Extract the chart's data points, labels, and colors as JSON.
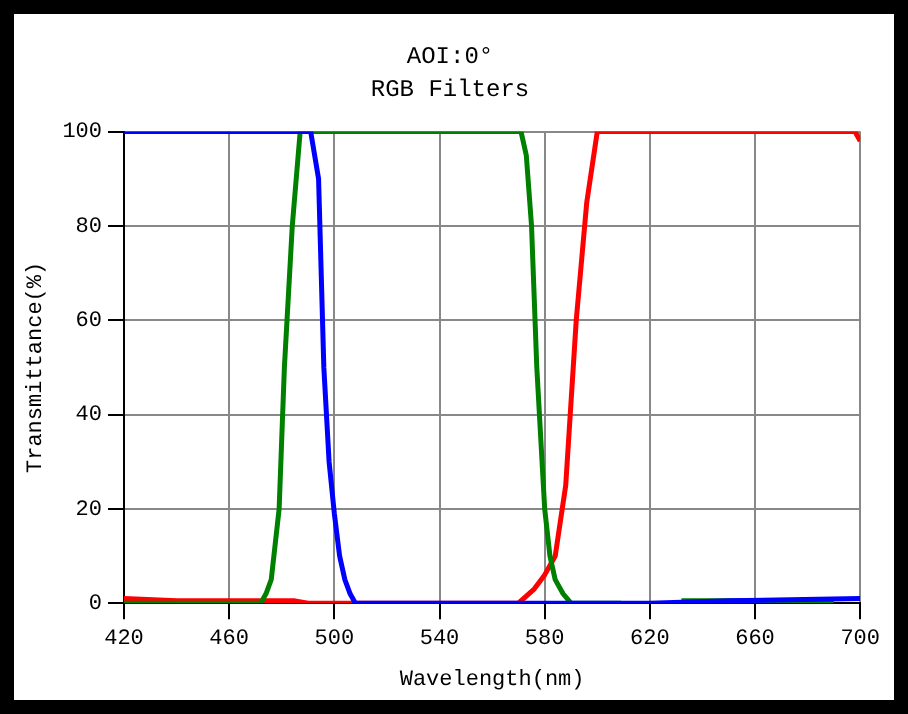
{
  "chart_data": {
    "type": "line",
    "title": "AOI:0°",
    "subtitle": "RGB Filters",
    "xlabel": "Wavelength(nm)",
    "ylabel": "Transmittance(%)",
    "xlim": [
      420,
      700
    ],
    "ylim": [
      0,
      100
    ],
    "xticks": [
      420,
      460,
      500,
      540,
      580,
      620,
      660,
      700
    ],
    "yticks": [
      0,
      20,
      40,
      60,
      80,
      100
    ],
    "grid": true,
    "legend": false,
    "marker": "none",
    "line_style": "solid",
    "series": [
      {
        "color": "#0000ff",
        "x": [
          420,
          491,
          494,
          496,
          498,
          500,
          502,
          504,
          506,
          508,
          560,
          620,
          650,
          700
        ],
        "values": [
          100,
          100,
          90,
          50,
          30,
          19,
          10,
          5,
          2,
          0,
          0,
          0,
          0.5,
          1
        ]
      },
      {
        "color": "#008000",
        "x": [
          420,
          472,
          474,
          476,
          479,
          481,
          484,
          487,
          571,
          573,
          575,
          577,
          580,
          582,
          584,
          587,
          590,
          609,
          620,
          632,
          690
        ],
        "values": [
          0,
          0,
          2,
          5,
          20,
          50,
          80,
          100,
          100,
          95,
          80,
          50,
          20,
          10,
          5,
          2,
          0,
          0,
          null,
          0.5,
          0.5
        ]
      },
      {
        "color": "#ff0000",
        "x": [
          420,
          440,
          485,
          490,
          570,
          576,
          580,
          584,
          588,
          592,
          596,
          600,
          698,
          700
        ],
        "values": [
          1,
          0.5,
          0.5,
          0,
          0,
          3,
          6,
          10,
          25,
          60,
          85,
          100,
          100,
          98
        ]
      }
    ]
  }
}
